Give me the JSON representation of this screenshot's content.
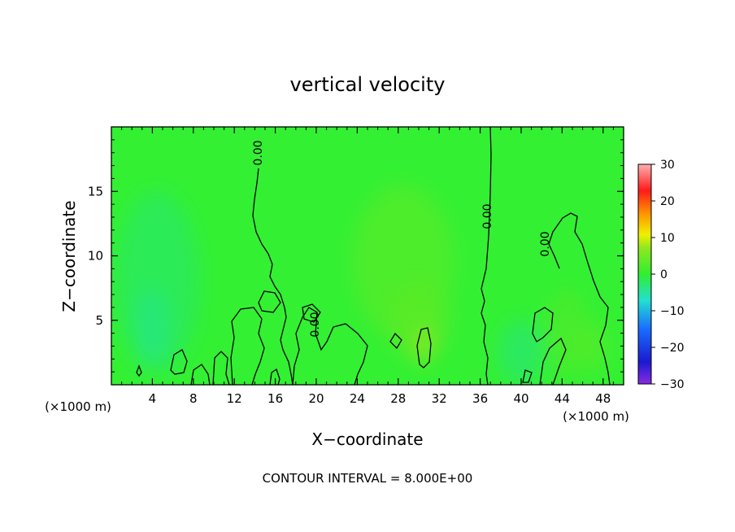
{
  "chart_data": {
    "type": "heatmap",
    "title": "vertical velocity",
    "xlabel": "X−coordinate",
    "ylabel": "Z−coordinate",
    "x_unit_left": "(×1000 m)",
    "x_unit_right": "(×1000 m)",
    "xlim": [
      0,
      50
    ],
    "ylim": [
      0,
      20
    ],
    "x_ticks": [
      4,
      8,
      12,
      16,
      20,
      24,
      28,
      32,
      36,
      40,
      44,
      48
    ],
    "y_ticks": [
      5,
      10,
      15
    ],
    "contour_labels": [
      "0.00",
      "0.00",
      "0.00",
      "0.00"
    ],
    "footer": "CONTOUR INTERVAL = 8.000E+00",
    "colorbar": {
      "ticks": [
        30,
        20,
        10,
        0,
        -10,
        -20,
        -30
      ],
      "tick_labels": [
        "30",
        "20",
        "10",
        "0",
        "−10",
        "−20",
        "−30"
      ],
      "range": [
        -30,
        30
      ]
    },
    "colors": {
      "background": "#33f033",
      "contour": "#000000"
    },
    "features": [
      {
        "x": 4.5,
        "z": 8.0,
        "sx": 4.0,
        "sz": 7.0,
        "w": -2.0
      },
      {
        "x": 4.0,
        "z": 4.5,
        "sx": 1.5,
        "sz": 3.0,
        "w": -3.5
      },
      {
        "x": 28.5,
        "z": 9.5,
        "sx": 5.0,
        "sz": 6.0,
        "w": 2.5
      },
      {
        "x": 30.0,
        "z": 5.0,
        "sx": 3.0,
        "sz": 3.0,
        "w": 3.0
      },
      {
        "x": 30.5,
        "z": 3.0,
        "sx": 0.8,
        "sz": 1.4,
        "w": 7.0
      },
      {
        "x": 40.0,
        "z": 2.5,
        "sx": 2.2,
        "sz": 2.5,
        "w": -2.5
      },
      {
        "x": 44.5,
        "z": 4.0,
        "sx": 2.0,
        "sz": 3.5,
        "w": 2.0
      },
      {
        "x": 47.0,
        "z": 3.0,
        "sx": 1.5,
        "sz": 2.0,
        "w": 2.5
      }
    ]
  }
}
